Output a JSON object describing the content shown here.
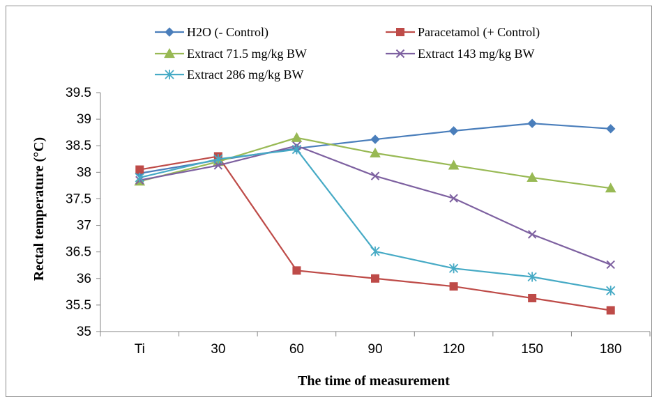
{
  "chart_data": {
    "type": "line",
    "xlabel": "The time of measurement",
    "ylabel": "Rectal temperature (°C)",
    "categories": [
      "Ti",
      "30",
      "60",
      "90",
      "120",
      "150",
      "180"
    ],
    "ylim": [
      35,
      39.5
    ],
    "yticks": [
      "35",
      "35.5",
      "36",
      "36.5",
      "37",
      "37.5",
      "38",
      "38.5",
      "39",
      "39.5"
    ],
    "grid": false,
    "legend_position": "top",
    "series": [
      {
        "name": "H2O (- Control)",
        "color": "#4a7ebb",
        "marker": "diamond",
        "values": [
          37.98,
          38.23,
          38.45,
          38.62,
          38.78,
          38.92,
          38.82
        ]
      },
      {
        "name": "Paracetamol (+ Control)",
        "color": "#be4b48",
        "marker": "square",
        "values": [
          38.05,
          38.3,
          36.15,
          36.0,
          35.85,
          35.63,
          35.4
        ]
      },
      {
        "name": "Extract  71.5 mg/kg BW",
        "color": "#98b954",
        "marker": "triangle",
        "values": [
          37.83,
          38.2,
          38.65,
          38.36,
          38.13,
          37.9,
          37.7
        ]
      },
      {
        "name": "Extract  143 mg/kg BW",
        "color": "#7d60a0",
        "marker": "x",
        "values": [
          37.85,
          38.13,
          38.5,
          37.93,
          37.51,
          36.83,
          36.26
        ]
      },
      {
        "name": "Extract  286 mg/kg BW",
        "color": "#46aac5",
        "marker": "star",
        "values": [
          37.9,
          38.25,
          38.43,
          36.51,
          36.19,
          36.03,
          35.77
        ]
      }
    ]
  }
}
